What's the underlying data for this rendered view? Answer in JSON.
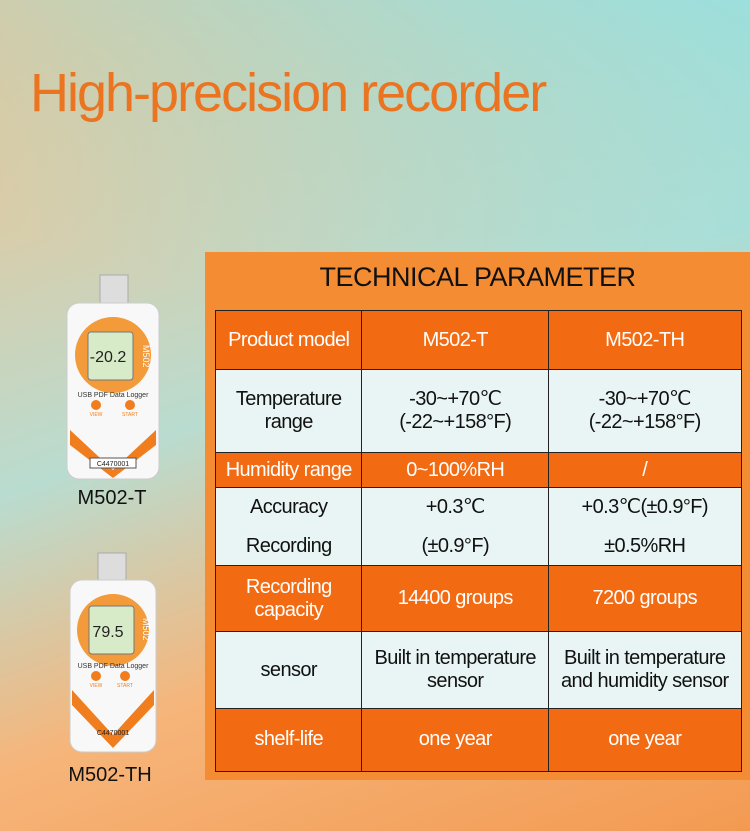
{
  "header": {
    "title": "High-precision recorder"
  },
  "devices": [
    {
      "label": "M502-T",
      "reading": "-20.2",
      "model": "M502",
      "caption": "USB PDF Data Logger",
      "serial": "C4470001",
      "buttons": [
        "VIEW",
        "START"
      ]
    },
    {
      "label": "M502-TH",
      "reading": "79.5",
      "model": "M502",
      "caption": "USB PDF Data Logger",
      "serial": "C4470001",
      "buttons": [
        "VIEW",
        "START"
      ]
    }
  ],
  "table": {
    "title": "TECHNICAL PARAMETER",
    "rows": [
      [
        [
          "Product model"
        ],
        [
          "M502-T"
        ],
        [
          "M502-TH"
        ]
      ],
      [
        [
          "Temperature",
          "range"
        ],
        [
          "-30~+70℃",
          "(-22~+158°F)"
        ],
        [
          "-30~+70℃",
          "(-22~+158°F)"
        ]
      ],
      [
        [
          "Humidity range"
        ],
        [
          "0~100%RH"
        ],
        [
          "/"
        ]
      ],
      [
        [
          "Accuracy",
          "Recording"
        ],
        [
          "+0.3℃",
          "(±0.9°F)"
        ],
        [
          "+0.3℃(±0.9°F)",
          "±0.5%RH"
        ]
      ],
      [
        [
          "Recording",
          "capacity"
        ],
        [
          "14400 groups"
        ],
        [
          "7200 groups"
        ]
      ],
      [
        [
          "sensor"
        ],
        [
          "Built in temperature",
          "sensor"
        ],
        [
          "Built in temperature",
          "and humidity sensor"
        ]
      ],
      [
        [
          "shelf-life"
        ],
        [
          "one year"
        ],
        [
          "one year"
        ]
      ]
    ]
  }
}
